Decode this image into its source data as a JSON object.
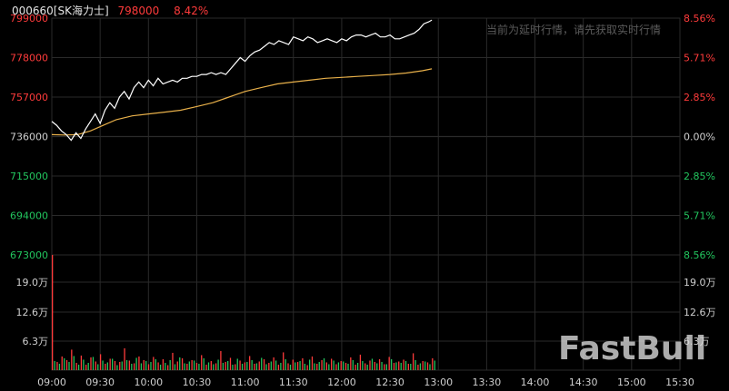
{
  "header": {
    "code_name": "000660[SK海力士]",
    "price": "798000",
    "change_pct": "8.42%"
  },
  "notice": "当前为延时行情，请先获取实时行情",
  "watermark": "FastBull",
  "colors": {
    "up": "#ff3b3b",
    "down": "#22c55e",
    "price_line": "#ffffff",
    "avg_line": "#e8b04a",
    "grid": "#2a2a2a",
    "axis_text": "#cfcfcf"
  },
  "chart_data": [
    {
      "type": "line",
      "series": [
        {
          "values": [
            [
              0,
              744000
            ],
            [
              3,
              742000
            ],
            [
              6,
              739000
            ],
            [
              9,
              737000
            ],
            [
              12,
              734000
            ],
            [
              15,
              738000
            ],
            [
              18,
              735000
            ],
            [
              21,
              740000
            ],
            [
              24,
              744000
            ],
            [
              27,
              748000
            ],
            [
              30,
              743000
            ],
            [
              33,
              750000
            ],
            [
              36,
              754000
            ],
            [
              39,
              751000
            ],
            [
              42,
              757000
            ],
            [
              45,
              760000
            ],
            [
              48,
              756000
            ],
            [
              51,
              762000
            ],
            [
              54,
              765000
            ],
            [
              57,
              762000
            ],
            [
              60,
              766000
            ],
            [
              63,
              763000
            ],
            [
              66,
              767000
            ],
            [
              69,
              764000
            ],
            [
              72,
              765000
            ],
            [
              75,
              766000
            ],
            [
              78,
              765000
            ],
            [
              81,
              767000
            ],
            [
              84,
              767000
            ],
            [
              87,
              768000
            ],
            [
              90,
              768000
            ],
            [
              93,
              769000
            ],
            [
              96,
              769000
            ],
            [
              99,
              770000
            ],
            [
              102,
              769000
            ],
            [
              105,
              770000
            ],
            [
              108,
              769000
            ],
            [
              111,
              772000
            ],
            [
              114,
              775000
            ],
            [
              117,
              778000
            ],
            [
              120,
              776000
            ],
            [
              123,
              779000
            ],
            [
              126,
              781000
            ],
            [
              129,
              782000
            ],
            [
              132,
              784000
            ],
            [
              135,
              786000
            ],
            [
              138,
              785000
            ],
            [
              141,
              787000
            ],
            [
              144,
              786000
            ],
            [
              147,
              785000
            ],
            [
              150,
              789000
            ],
            [
              153,
              788000
            ],
            [
              156,
              787000
            ],
            [
              159,
              789000
            ],
            [
              162,
              788000
            ],
            [
              165,
              786000
            ],
            [
              168,
              787000
            ],
            [
              171,
              788000
            ],
            [
              174,
              787000
            ],
            [
              177,
              786000
            ],
            [
              180,
              788000
            ],
            [
              183,
              787000
            ],
            [
              186,
              789000
            ],
            [
              189,
              790000
            ],
            [
              192,
              790000
            ],
            [
              195,
              789000
            ],
            [
              198,
              790000
            ],
            [
              201,
              791000
            ],
            [
              204,
              789000
            ],
            [
              207,
              789000
            ],
            [
              210,
              790000
            ],
            [
              213,
              788000
            ],
            [
              216,
              788000
            ],
            [
              219,
              789000
            ],
            [
              222,
              790000
            ],
            [
              225,
              791000
            ],
            [
              228,
              793000
            ],
            [
              231,
              796000
            ],
            [
              234,
              797000
            ],
            [
              236,
              798000
            ]
          ]
        },
        {
          "values": [
            [
              0,
              737000
            ],
            [
              8,
              736800
            ],
            [
              16,
              737000
            ],
            [
              24,
              739000
            ],
            [
              32,
              742000
            ],
            [
              40,
              745000
            ],
            [
              50,
              747000
            ],
            [
              60,
              748000
            ],
            [
              70,
              749000
            ],
            [
              80,
              750000
            ],
            [
              90,
              752000
            ],
            [
              100,
              754000
            ],
            [
              110,
              757000
            ],
            [
              120,
              760000
            ],
            [
              130,
              762000
            ],
            [
              140,
              764000
            ],
            [
              150,
              765000
            ],
            [
              160,
              766000
            ],
            [
              170,
              767000
            ],
            [
              180,
              767500
            ],
            [
              190,
              768000
            ],
            [
              200,
              768500
            ],
            [
              210,
              769000
            ],
            [
              220,
              769800
            ],
            [
              230,
              771000
            ],
            [
              236,
              772000
            ]
          ]
        }
      ],
      "x_unit": "minutes since 09:00",
      "yticks": [
        "799000",
        "778000",
        "757000",
        "736000",
        "715000",
        "694000",
        "673000"
      ],
      "yticks_right": [
        "8.56%",
        "5.71%",
        "2.85%",
        "0.00%",
        "2.85%",
        "5.71%",
        "8.56%"
      ],
      "ylim": [
        673000,
        799000
      ],
      "grid": true
    },
    {
      "type": "bar",
      "yticks": [
        "19.0万",
        "12.6万",
        "6.3万"
      ],
      "yticks_right": [
        "19.0万",
        "12.6万",
        "6.3万"
      ],
      "ylim": [
        0,
        25.3
      ],
      "xticks": [
        "09:00",
        "09:30",
        "10:00",
        "10:30",
        "11:00",
        "11:30",
        "12:00",
        "12:30",
        "13:00",
        "13:30",
        "14:00",
        "14:30",
        "15:00",
        "15:30"
      ],
      "bars_up": [
        25.3,
        1.8,
        3.0,
        2.2,
        4.5,
        1.6,
        3.2,
        1.2,
        2.8,
        1.9,
        3.5,
        1.4,
        2.5,
        2.0,
        1.8,
        4.8,
        2.1,
        1.5,
        3.0,
        2.2,
        1.3,
        2.9,
        1.7,
        2.4,
        1.1,
        3.8,
        1.9,
        2.6,
        1.4,
        2.2,
        1.6,
        3.3,
        1.2,
        2.0,
        1.5,
        4.2,
        1.8,
        2.7,
        1.3,
        2.1,
        1.7,
        3.1,
        1.4,
        1.9,
        2.4,
        1.6,
        2.8,
        1.2,
        3.9,
        1.5,
        2.3,
        1.8,
        2.6,
        1.1,
        3.0,
        1.4,
        2.2,
        1.7,
        2.5,
        1.3,
        2.0,
        1.6,
        2.8,
        1.2,
        3.4,
        1.5,
        2.1,
        1.8,
        2.4,
        1.3,
        2.9,
        1.6,
        1.9,
        2.3,
        1.4,
        3.7,
        1.2,
        2.0,
        1.7,
        2.6
      ],
      "bars_down": [
        2.0,
        1.4,
        2.6,
        1.8,
        3.1,
        1.2,
        2.3,
        1.6,
        2.9,
        1.3,
        2.1,
        1.7,
        2.5,
        1.1,
        1.9,
        2.2,
        1.4,
        2.7,
        1.5,
        2.0,
        1.8,
        2.4,
        1.2,
        1.6,
        2.2,
        1.3,
        2.8,
        1.5,
        1.9,
        2.1,
        1.4,
        2.6,
        1.7,
        1.3,
        2.3,
        1.6,
        2.0,
        1.2,
        2.5,
        1.4,
        1.8,
        2.2,
        1.5,
        2.7,
        1.3,
        1.9,
        2.1,
        1.6,
        2.4,
        1.2,
        1.7,
        2.0,
        1.4,
        2.3,
        1.5,
        1.8,
        2.6,
        1.3,
        2.1,
        1.7,
        1.9,
        1.4,
        2.2,
        1.6,
        2.0,
        1.2,
        2.5,
        1.5,
        1.8,
        1.3,
        2.4,
        1.7,
        1.6,
        2.0,
        1.4,
        2.2,
        1.5,
        1.9,
        1.3,
        2.1
      ]
    }
  ]
}
